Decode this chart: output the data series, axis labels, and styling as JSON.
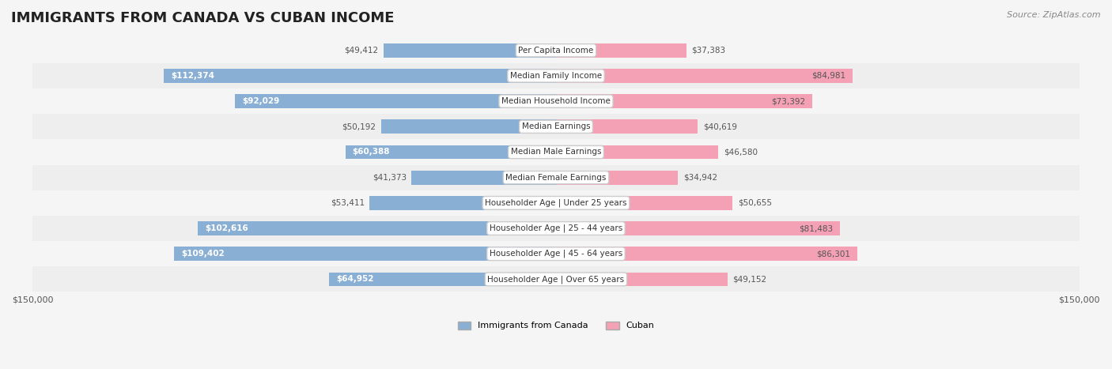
{
  "title": "IMMIGRANTS FROM CANADA VS CUBAN INCOME",
  "source": "Source: ZipAtlas.com",
  "categories": [
    "Per Capita Income",
    "Median Family Income",
    "Median Household Income",
    "Median Earnings",
    "Median Male Earnings",
    "Median Female Earnings",
    "Householder Age | Under 25 years",
    "Householder Age | 25 - 44 years",
    "Householder Age | 45 - 64 years",
    "Householder Age | Over 65 years"
  ],
  "canada_values": [
    49412,
    112374,
    92029,
    50192,
    60388,
    41373,
    53411,
    102616,
    109402,
    64952
  ],
  "cuban_values": [
    37383,
    84981,
    73392,
    40619,
    46580,
    34942,
    50655,
    81483,
    86301,
    49152
  ],
  "canada_color": "#8aafd4",
  "canada_dark_color": "#5b8fc9",
  "cuban_color": "#f4a0b5",
  "cuban_dark_color": "#e96090",
  "max_value": 150000,
  "bg_color": "#f5f5f5",
  "row_bg_light": "#fafafa",
  "row_bg_dark": "#eeeeee",
  "label_bg": "#ffffff",
  "legend_canada": "Immigrants from Canada",
  "legend_cuban": "Cuban"
}
